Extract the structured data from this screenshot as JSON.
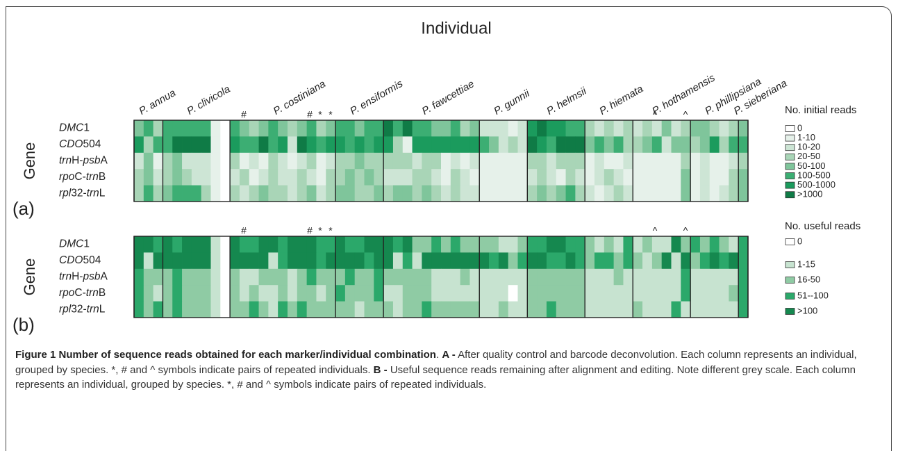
{
  "axis_title": "Individual",
  "species": [
    "P. annua",
    "P. clivicola",
    "P. costiniana",
    "P. ensiformis",
    "P. fawcettiae",
    "P. gunnii",
    "P. helmsii",
    "P. hiemata",
    "P. hothamensis",
    "P. phillipsiana",
    "P. sieberiana"
  ],
  "group_sizes": [
    3,
    7,
    11,
    5,
    10,
    5,
    6,
    5,
    6,
    5,
    1
  ],
  "genes": [
    [
      "DMC",
      "1"
    ],
    [
      "CDO",
      "504"
    ],
    [
      "trn",
      "H-",
      "psb",
      "A"
    ],
    [
      "rpo",
      "C-",
      "trn",
      "B"
    ],
    [
      "rpl",
      "32-",
      "trn",
      "L"
    ]
  ],
  "panels": [
    {
      "label": "(a)",
      "y_title": "Gene",
      "legend": {
        "title": "No. initial reads",
        "items": [
          "0",
          "1-10",
          "10-20",
          "20-50",
          "50-100",
          "100-500",
          "500-1000",
          ">1000"
        ],
        "colors": [
          "#ffffff",
          "#e6f1ea",
          "#cde5d5",
          "#a9d5b7",
          "#7fc59b",
          "#3cae73",
          "#1b9b5d",
          "#0f7b46"
        ]
      },
      "annotations": [
        "#",
        "#",
        "*",
        "*",
        "^",
        "^"
      ],
      "cells": [
        [
          4,
          5,
          3,
          5,
          5,
          5,
          5,
          5,
          1,
          0,
          5,
          4,
          3,
          4,
          5,
          4,
          3,
          4,
          5,
          3,
          4,
          5,
          5,
          4,
          5,
          5,
          7,
          5,
          7,
          5,
          5,
          4,
          4,
          5,
          3,
          4,
          2,
          2,
          2,
          1,
          2,
          6,
          7,
          6,
          6,
          5,
          5,
          3,
          2,
          3,
          2,
          3,
          2,
          3,
          2,
          4,
          2,
          3,
          4,
          4,
          3,
          2,
          3,
          4
        ],
        [
          6,
          3,
          5,
          5,
          7,
          7,
          7,
          7,
          1,
          0,
          6,
          5,
          5,
          7,
          5,
          6,
          2,
          7,
          6,
          5,
          6,
          6,
          5,
          6,
          5,
          6,
          6,
          3,
          1,
          6,
          6,
          6,
          6,
          6,
          6,
          6,
          5,
          4,
          2,
          3,
          2,
          7,
          6,
          5,
          7,
          7,
          7,
          4,
          5,
          4,
          5,
          3,
          3,
          4,
          5,
          2,
          4,
          4,
          3,
          4,
          6,
          3,
          5,
          5
        ],
        [
          2,
          4,
          1,
          3,
          4,
          2,
          2,
          2,
          1,
          0,
          3,
          1,
          2,
          1,
          3,
          2,
          1,
          2,
          3,
          1,
          2,
          3,
          3,
          4,
          3,
          3,
          3,
          3,
          3,
          2,
          3,
          3,
          1,
          2,
          1,
          2,
          1,
          1,
          1,
          1,
          1,
          3,
          3,
          2,
          3,
          3,
          3,
          1,
          2,
          1,
          1,
          2,
          1,
          1,
          1,
          1,
          1,
          3,
          1,
          2,
          1,
          1,
          2,
          3
        ],
        [
          3,
          4,
          2,
          3,
          4,
          3,
          2,
          2,
          1,
          0,
          2,
          3,
          1,
          2,
          3,
          2,
          2,
          3,
          2,
          1,
          3,
          3,
          4,
          3,
          4,
          3,
          2,
          2,
          2,
          3,
          3,
          2,
          1,
          3,
          2,
          1,
          1,
          1,
          1,
          1,
          1,
          2,
          3,
          2,
          1,
          3,
          2,
          1,
          2,
          3,
          2,
          1,
          1,
          1,
          1,
          1,
          1,
          4,
          1,
          2,
          1,
          1,
          3,
          4
        ],
        [
          3,
          5,
          3,
          4,
          5,
          5,
          5,
          3,
          1,
          0,
          3,
          2,
          3,
          4,
          3,
          3,
          2,
          3,
          4,
          2,
          3,
          4,
          4,
          3,
          3,
          4,
          3,
          4,
          4,
          3,
          4,
          3,
          2,
          3,
          2,
          2,
          1,
          1,
          1,
          1,
          1,
          3,
          4,
          3,
          4,
          5,
          3,
          2,
          1,
          2,
          3,
          2,
          1,
          1,
          1,
          1,
          1,
          4,
          1,
          2,
          1,
          2,
          3,
          4
        ]
      ]
    },
    {
      "label": "(b)",
      "y_title": "Gene",
      "legend": {
        "title": "No. useful reads",
        "items": [
          "0",
          "1-15",
          "16-50",
          "51--100",
          ">100"
        ],
        "colors": [
          "#ffffff",
          "#c7e3d0",
          "#8fcba4",
          "#2ba86a",
          "#15884f"
        ]
      },
      "annotations": [
        "#",
        "#",
        "*",
        "*",
        "^",
        "^"
      ],
      "cells": [
        [
          4,
          4,
          3,
          4,
          3,
          4,
          4,
          4,
          1,
          0,
          4,
          3,
          3,
          4,
          4,
          3,
          4,
          4,
          4,
          3,
          3,
          4,
          3,
          3,
          4,
          4,
          4,
          3,
          4,
          2,
          2,
          3,
          2,
          3,
          2,
          2,
          2,
          2,
          1,
          1,
          2,
          3,
          3,
          4,
          4,
          3,
          3,
          2,
          1,
          2,
          1,
          3,
          1,
          2,
          1,
          1,
          4,
          2,
          3,
          2,
          3,
          2,
          1,
          3
        ],
        [
          4,
          1,
          4,
          4,
          4,
          4,
          4,
          4,
          1,
          0,
          4,
          4,
          4,
          4,
          1,
          3,
          4,
          4,
          4,
          3,
          4,
          4,
          4,
          4,
          3,
          4,
          4,
          1,
          3,
          1,
          4,
          4,
          4,
          4,
          4,
          4,
          4,
          3,
          4,
          2,
          3,
          4,
          4,
          3,
          3,
          4,
          3,
          2,
          3,
          3,
          2,
          3,
          2,
          1,
          2,
          4,
          1,
          4,
          2,
          3,
          4,
          3,
          4,
          3
        ],
        [
          3,
          2,
          2,
          2,
          3,
          2,
          2,
          2,
          1,
          0,
          2,
          1,
          1,
          2,
          2,
          2,
          1,
          2,
          3,
          2,
          2,
          2,
          3,
          2,
          2,
          3,
          2,
          2,
          2,
          2,
          2,
          1,
          1,
          1,
          2,
          1,
          1,
          1,
          1,
          1,
          1,
          2,
          2,
          2,
          2,
          2,
          2,
          1,
          1,
          1,
          2,
          1,
          1,
          1,
          1,
          1,
          1,
          3,
          1,
          1,
          1,
          1,
          1,
          3
        ],
        [
          3,
          2,
          1,
          2,
          3,
          2,
          2,
          2,
          1,
          0,
          2,
          1,
          2,
          1,
          1,
          2,
          1,
          2,
          2,
          1,
          2,
          3,
          2,
          2,
          2,
          3,
          1,
          1,
          2,
          2,
          2,
          1,
          1,
          1,
          1,
          1,
          1,
          1,
          1,
          0,
          1,
          2,
          2,
          2,
          2,
          2,
          2,
          1,
          1,
          1,
          1,
          1,
          1,
          1,
          1,
          1,
          1,
          3,
          1,
          1,
          1,
          1,
          2,
          3
        ],
        [
          3,
          2,
          3,
          2,
          3,
          2,
          2,
          2,
          1,
          0,
          2,
          2,
          3,
          2,
          1,
          3,
          2,
          3,
          2,
          2,
          2,
          2,
          2,
          1,
          2,
          2,
          2,
          1,
          2,
          2,
          3,
          2,
          2,
          2,
          2,
          2,
          1,
          1,
          2,
          1,
          1,
          2,
          2,
          3,
          2,
          2,
          2,
          1,
          1,
          1,
          1,
          1,
          2,
          1,
          1,
          1,
          3,
          1,
          1,
          1,
          1,
          1,
          1,
          3
        ]
      ]
    }
  ],
  "caption": [
    {
      "text": "Figure 1 Number of sequence reads obtained for each marker/individual combination",
      "bold": true
    },
    {
      "text": ". ",
      "bold": false
    },
    {
      "text": "A -",
      "bold": true
    },
    {
      "text": " After quality control and barcode deconvolution. Each column represents an individual, grouped by species. *, # and ^ symbols indicate pairs of repeated individuals. ",
      "bold": false
    },
    {
      "text": "B -",
      "bold": true
    },
    {
      "text": " Useful sequence reads remaining after alignment and editing. Note different grey scale. Each column represents an individual, grouped by species. *, # and ^ symbols indicate pairs of repeated individuals.",
      "bold": false
    }
  ]
}
